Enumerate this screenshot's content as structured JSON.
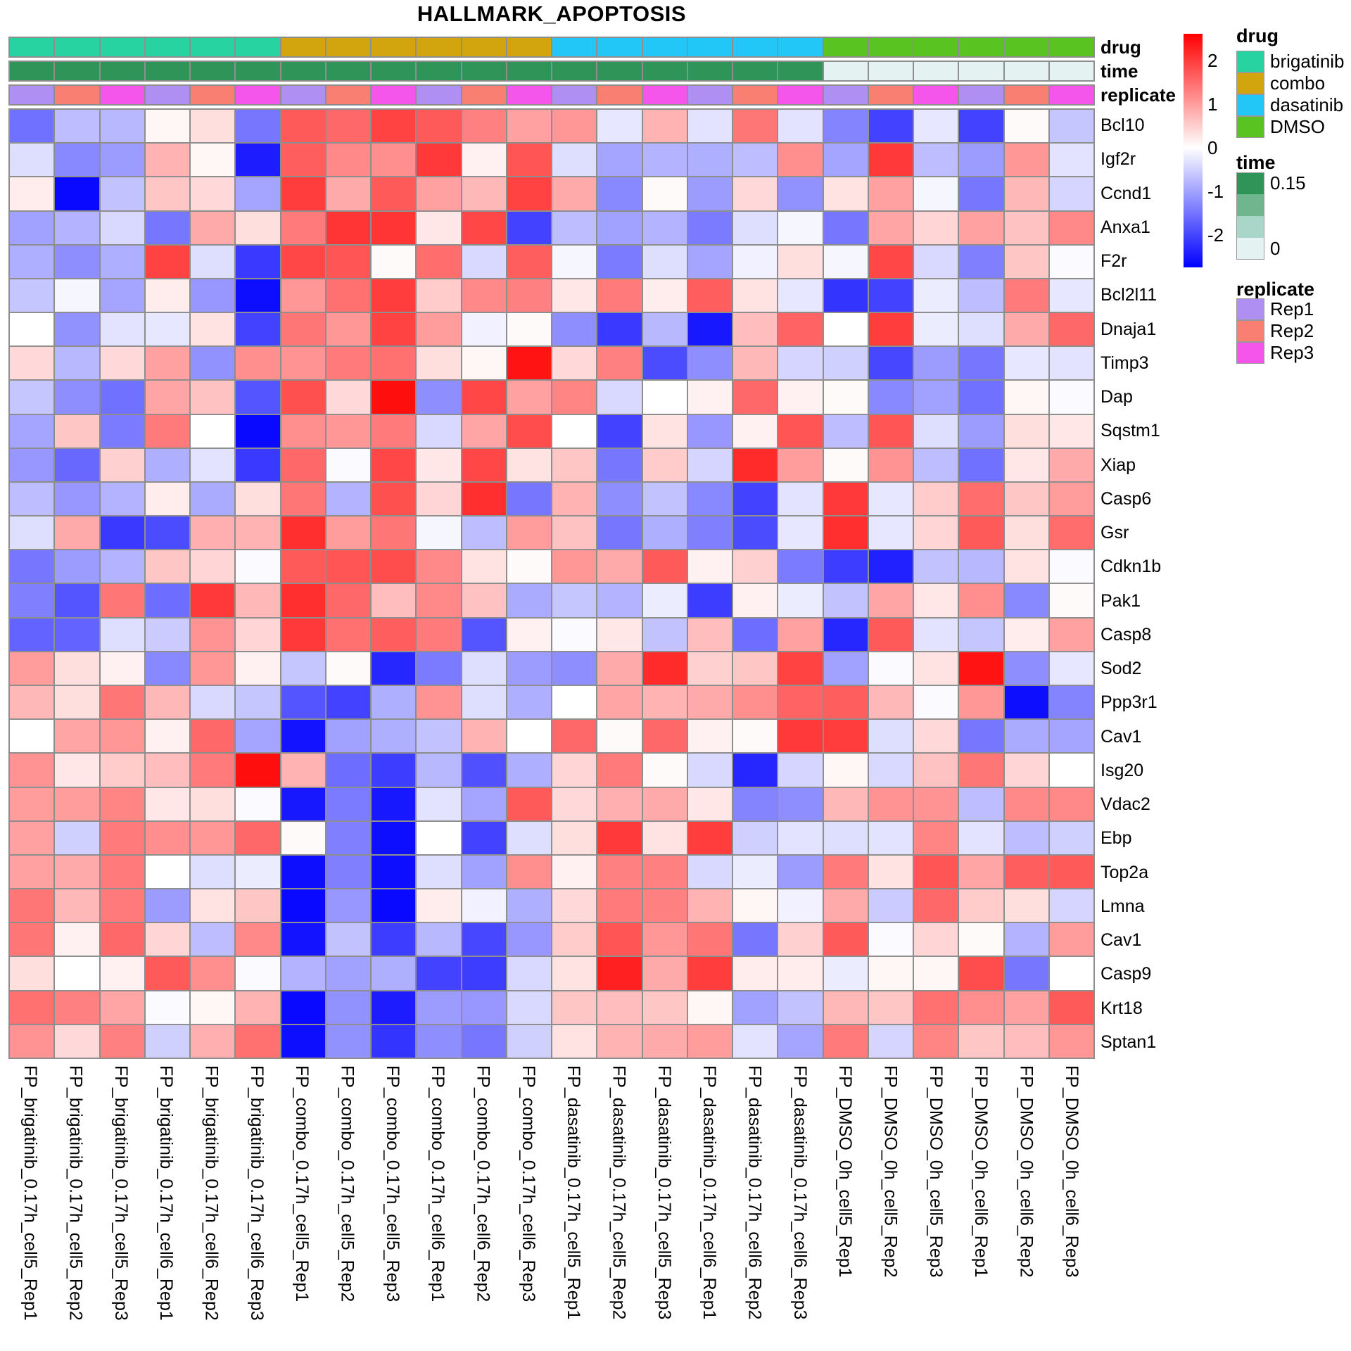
{
  "title": "HALLMARK_APOPTOSIS",
  "annotation_labels": {
    "drug": "drug",
    "time": "time",
    "replicate": "replicate"
  },
  "legends": {
    "drug": {
      "title": "drug",
      "items": [
        {
          "label": "brigatinib",
          "color": "#27D3A1"
        },
        {
          "label": "combo",
          "color": "#D2A40E"
        },
        {
          "label": "dasatinib",
          "color": "#22C7F8"
        },
        {
          "label": "DMSO",
          "color": "#58C321"
        }
      ]
    },
    "time": {
      "title": "time",
      "stops": [
        "#2F9457",
        "#6FB58E",
        "#A9D6C9",
        "#E4F3F1"
      ],
      "top_label": "0.15",
      "bottom_label": "0"
    },
    "replicate": {
      "title": "replicate",
      "items": [
        {
          "label": "Rep1",
          "color": "#AF8FF2"
        },
        {
          "label": "Rep2",
          "color": "#F87F72"
        },
        {
          "label": "Rep3",
          "color": "#F655EC"
        }
      ]
    }
  },
  "chart_data": {
    "type": "heatmap",
    "title": "HALLMARK_APOPTOSIS",
    "colormap": {
      "low": "#0000FF",
      "mid": "#FFFFFF",
      "high": "#FF0000",
      "vmin": -2.7,
      "vmax": 2.7
    },
    "colorbar_ticks": [
      2,
      1,
      0,
      -1,
      -2
    ],
    "grid_line_color": "#8e8e8e",
    "columns": [
      "FP_brigatinib_0.17h_cell5_Rep1",
      "FP_brigatinib_0.17h_cell5_Rep2",
      "FP_brigatinib_0.17h_cell5_Rep3",
      "FP_brigatinib_0.17h_cell6_Rep1",
      "FP_brigatinib_0.17h_cell6_Rep2",
      "FP_brigatinib_0.17h_cell6_Rep3",
      "FP_combo_0.17h_cell5_Rep1",
      "FP_combo_0.17h_cell5_Rep2",
      "FP_combo_0.17h_cell5_Rep3",
      "FP_combo_0.17h_cell6_Rep1",
      "FP_combo_0.17h_cell6_Rep2",
      "FP_combo_0.17h_cell6_Rep3",
      "FP_dasatinib_0.17h_cell5_Rep1",
      "FP_dasatinib_0.17h_cell5_Rep2",
      "FP_dasatinib_0.17h_cell5_Rep3",
      "FP_dasatinib_0.17h_cell6_Rep1",
      "FP_dasatinib_0.17h_cell6_Rep2",
      "FP_dasatinib_0.17h_cell6_Rep3",
      "FP_DMSO_0h_cell5_Rep1",
      "FP_DMSO_0h_cell5_Rep2",
      "FP_DMSO_0h_cell5_Rep3",
      "FP_DMSO_0h_cell6_Rep1",
      "FP_DMSO_0h_cell6_Rep2",
      "FP_DMSO_0h_cell6_Rep3"
    ],
    "rows": [
      "Bcl10",
      "Igf2r",
      "Ccnd1",
      "Anxa1",
      "F2r",
      "Bcl2l11",
      "Dnaja1",
      "Timp3",
      "Dap",
      "Sqstm1",
      "Xiap",
      "Casp6",
      "Gsr",
      "Cdkn1b",
      "Pak1",
      "Casp8",
      "Sod2",
      "Ppp3r1",
      "Cav1",
      "Isg20",
      "Vdac2",
      "Ebp",
      "Top2a",
      "Lmna",
      "Cav1",
      "Casp9",
      "Krt18",
      "Sptan1"
    ],
    "values": [
      [
        -1.5,
        -0.7,
        -0.75,
        0.1,
        0.35,
        -1.45,
        1.75,
        1.6,
        2.0,
        1.75,
        1.35,
        1.0,
        1.1,
        -0.25,
        0.8,
        -0.3,
        1.45,
        -0.3,
        -1.3,
        -2.0,
        -0.25,
        -2.0,
        0.05,
        -0.6
      ],
      [
        -0.35,
        -1.25,
        -1.05,
        0.8,
        0.1,
        -2.4,
        1.7,
        1.25,
        1.2,
        2.1,
        0.15,
        1.8,
        -0.35,
        -0.95,
        -0.8,
        -0.85,
        -0.7,
        1.2,
        -0.95,
        2.1,
        -0.7,
        -1.05,
        1.1,
        -0.3
      ],
      [
        0.2,
        -2.6,
        -0.65,
        0.6,
        0.4,
        -0.95,
        2.05,
        0.9,
        1.75,
        1.0,
        0.75,
        2.0,
        0.9,
        -1.25,
        0.05,
        -1.05,
        0.4,
        -1.15,
        0.3,
        1.0,
        -0.1,
        -1.45,
        0.75,
        -0.45
      ],
      [
        -1.0,
        -0.8,
        -0.4,
        -1.45,
        0.9,
        0.35,
        1.4,
        2.15,
        2.15,
        0.25,
        1.95,
        -2.0,
        -0.7,
        -1.0,
        -0.8,
        -1.4,
        -0.35,
        -0.1,
        -1.45,
        0.95,
        0.45,
        1.0,
        0.65,
        1.25
      ],
      [
        -0.85,
        -1.2,
        -0.85,
        2.0,
        -0.35,
        -2.1,
        1.95,
        1.8,
        0.05,
        1.55,
        -0.4,
        1.7,
        -0.1,
        -1.4,
        -0.35,
        -0.95,
        -0.15,
        0.35,
        -0.1,
        1.95,
        -0.4,
        -1.35,
        0.6,
        -0.05
      ],
      [
        -0.6,
        -0.1,
        -0.95,
        0.2,
        -1.1,
        -2.55,
        1.1,
        1.5,
        2.05,
        0.55,
        1.25,
        1.35,
        0.25,
        1.4,
        0.2,
        1.7,
        0.3,
        -0.25,
        -2.15,
        -2.0,
        -0.2,
        -0.7,
        1.4,
        -0.25
      ],
      [
        0.0,
        -1.15,
        -0.3,
        -0.25,
        0.3,
        -2.0,
        1.45,
        1.1,
        2.0,
        1.05,
        -0.15,
        0.05,
        -1.2,
        -2.1,
        -0.75,
        -2.45,
        0.7,
        1.65,
        0.0,
        2.05,
        -0.2,
        -0.35,
        0.9,
        1.6
      ],
      [
        0.4,
        -0.75,
        0.4,
        1.0,
        -1.15,
        1.2,
        1.15,
        1.4,
        1.5,
        0.35,
        0.1,
        2.5,
        0.4,
        1.35,
        -1.9,
        -1.2,
        0.75,
        -0.45,
        -0.5,
        -1.95,
        -1.05,
        -1.45,
        -0.25,
        -0.3
      ],
      [
        -0.6,
        -1.2,
        -1.5,
        0.95,
        0.65,
        -1.8,
        1.85,
        0.4,
        2.55,
        -1.2,
        1.95,
        1.0,
        1.3,
        -0.4,
        0.0,
        0.15,
        1.6,
        0.15,
        0.05,
        -1.25,
        -1.0,
        -1.5,
        0.1,
        -0.05
      ],
      [
        -0.95,
        0.6,
        -1.4,
        1.4,
        0.0,
        -2.6,
        1.2,
        1.1,
        1.4,
        -0.4,
        0.95,
        1.9,
        0.0,
        -2.0,
        0.3,
        -1.1,
        0.15,
        1.8,
        -0.7,
        1.8,
        -0.35,
        -1.05,
        0.35,
        0.25
      ],
      [
        -1.1,
        -1.6,
        0.5,
        -0.85,
        -0.3,
        -2.1,
        1.6,
        -0.05,
        1.95,
        0.25,
        1.95,
        0.3,
        0.6,
        -1.45,
        0.55,
        -0.45,
        2.25,
        1.05,
        0.05,
        1.15,
        -0.7,
        -1.5,
        0.25,
        0.9
      ],
      [
        -0.7,
        -1.1,
        -0.8,
        0.2,
        -0.9,
        0.35,
        1.45,
        -0.8,
        1.85,
        0.45,
        2.2,
        -1.45,
        0.8,
        -1.2,
        -0.65,
        -1.25,
        -2.0,
        -0.3,
        2.1,
        -0.25,
        0.55,
        1.55,
        0.6,
        1.05
      ],
      [
        -0.35,
        0.9,
        -2.1,
        -1.9,
        0.85,
        0.8,
        2.2,
        1.05,
        1.45,
        -0.1,
        -0.7,
        1.05,
        0.65,
        -1.45,
        -0.85,
        -1.35,
        -1.9,
        -0.25,
        2.2,
        -0.25,
        0.45,
        1.75,
        0.35,
        1.55
      ],
      [
        -1.45,
        -1.05,
        -0.8,
        0.6,
        0.45,
        -0.05,
        1.75,
        1.8,
        1.9,
        1.25,
        0.3,
        0.05,
        1.1,
        0.9,
        1.75,
        0.15,
        0.5,
        -1.4,
        -2.05,
        -2.35,
        -0.65,
        -0.75,
        0.3,
        -0.05
      ],
      [
        -1.35,
        -1.8,
        1.45,
        -1.55,
        2.1,
        0.75,
        2.2,
        1.6,
        0.7,
        1.25,
        0.65,
        -0.9,
        -0.6,
        -0.8,
        -0.2,
        -2.05,
        0.15,
        -0.2,
        -0.65,
        0.95,
        0.25,
        1.2,
        -1.25,
        0.05
      ],
      [
        -1.65,
        -1.65,
        -0.35,
        -0.55,
        1.15,
        0.45,
        2.1,
        1.5,
        1.7,
        1.4,
        -1.8,
        0.15,
        -0.05,
        0.25,
        -0.65,
        0.7,
        -1.55,
        1.0,
        -2.3,
        1.75,
        -0.3,
        -0.6,
        0.2,
        1.0
      ],
      [
        1.05,
        0.35,
        0.15,
        -1.25,
        1.1,
        0.15,
        -0.6,
        0.05,
        -2.3,
        -1.4,
        -0.35,
        -1.05,
        -1.2,
        0.9,
        2.25,
        0.5,
        0.6,
        2.0,
        -1.0,
        -0.05,
        0.3,
        2.5,
        -1.2,
        -0.25
      ],
      [
        0.75,
        0.35,
        1.45,
        0.75,
        -0.4,
        -0.6,
        -1.8,
        -2.0,
        -0.85,
        1.15,
        -0.35,
        -0.85,
        0.0,
        0.95,
        0.8,
        0.9,
        1.2,
        1.65,
        1.7,
        0.75,
        -0.05,
        1.1,
        -2.55,
        -1.3
      ],
      [
        0.0,
        0.95,
        1.1,
        0.15,
        1.6,
        -0.95,
        -2.5,
        -1.0,
        -0.85,
        -0.65,
        0.8,
        0.0,
        1.6,
        0.05,
        1.6,
        0.15,
        0.05,
        2.1,
        2.05,
        -0.35,
        0.4,
        -1.45,
        -0.9,
        -0.95
      ],
      [
        1.15,
        0.25,
        0.55,
        0.7,
        1.4,
        2.55,
        0.8,
        -1.55,
        -2.05,
        -0.75,
        -1.85,
        -0.85,
        0.45,
        1.4,
        0.05,
        -0.4,
        -2.3,
        -0.45,
        0.1,
        -0.4,
        0.65,
        1.45,
        0.45,
        0.0
      ],
      [
        1.05,
        1.05,
        1.3,
        0.25,
        0.35,
        -0.05,
        -2.45,
        -1.4,
        -2.45,
        -0.3,
        -0.95,
        1.75,
        0.4,
        0.85,
        0.9,
        0.25,
        -1.3,
        -1.2,
        0.75,
        1.15,
        1.15,
        -0.7,
        1.25,
        1.25
      ],
      [
        1.0,
        -0.5,
        1.4,
        1.2,
        1.1,
        1.6,
        0.05,
        -1.35,
        -2.55,
        0.0,
        -2.0,
        -0.35,
        0.35,
        2.1,
        0.3,
        2.05,
        -0.5,
        -0.3,
        -0.35,
        -0.3,
        1.3,
        -0.3,
        -0.7,
        -0.5
      ],
      [
        1.0,
        0.9,
        1.4,
        0.0,
        -0.35,
        -0.2,
        -2.55,
        -1.35,
        -2.55,
        -0.35,
        -1.0,
        1.2,
        0.15,
        1.35,
        1.35,
        -0.4,
        -0.2,
        -1.05,
        1.4,
        0.3,
        1.8,
        0.95,
        1.7,
        1.75
      ],
      [
        1.45,
        0.75,
        1.4,
        -1.05,
        0.3,
        0.6,
        -2.6,
        -1.1,
        -2.6,
        0.2,
        -0.15,
        -0.85,
        0.4,
        1.4,
        1.35,
        0.8,
        0.1,
        -0.15,
        0.9,
        -0.55,
        1.6,
        0.55,
        0.35,
        -0.45
      ],
      [
        1.45,
        0.15,
        1.6,
        0.45,
        -0.7,
        1.25,
        -2.5,
        -0.65,
        -2.05,
        -0.75,
        -1.95,
        -1.1,
        0.55,
        1.8,
        1.1,
        1.45,
        -1.45,
        0.5,
        1.75,
        -0.05,
        0.45,
        0.05,
        -0.8,
        1.05
      ],
      [
        0.35,
        0.0,
        0.15,
        1.75,
        1.2,
        -0.05,
        -0.8,
        -1.0,
        -0.85,
        -2.0,
        -2.05,
        -0.4,
        0.3,
        2.35,
        0.9,
        2.05,
        0.2,
        0.2,
        -0.2,
        0.1,
        0.1,
        1.9,
        -1.45,
        0.0
      ],
      [
        1.5,
        1.35,
        0.95,
        -0.05,
        0.1,
        0.8,
        -2.6,
        -1.15,
        -2.4,
        -1.05,
        -1.1,
        -0.4,
        0.6,
        0.7,
        0.6,
        0.1,
        -1.0,
        -0.65,
        0.75,
        0.6,
        1.5,
        1.2,
        1.0,
        1.75
      ],
      [
        1.15,
        0.4,
        1.35,
        -0.5,
        0.85,
        1.5,
        -2.55,
        -1.15,
        -2.15,
        -1.2,
        -1.45,
        -0.5,
        0.3,
        0.8,
        0.9,
        1.05,
        -0.3,
        -0.95,
        1.4,
        -0.45,
        1.3,
        0.6,
        0.7,
        1.1
      ]
    ],
    "column_annotations": {
      "drug": [
        "brigatinib",
        "brigatinib",
        "brigatinib",
        "brigatinib",
        "brigatinib",
        "brigatinib",
        "combo",
        "combo",
        "combo",
        "combo",
        "combo",
        "combo",
        "dasatinib",
        "dasatinib",
        "dasatinib",
        "dasatinib",
        "dasatinib",
        "dasatinib",
        "DMSO",
        "DMSO",
        "DMSO",
        "DMSO",
        "DMSO",
        "DMSO"
      ],
      "time": [
        0.17,
        0.17,
        0.17,
        0.17,
        0.17,
        0.17,
        0.17,
        0.17,
        0.17,
        0.17,
        0.17,
        0.17,
        0.17,
        0.17,
        0.17,
        0.17,
        0.17,
        0.17,
        0,
        0,
        0,
        0,
        0,
        0
      ],
      "replicate": [
        "Rep1",
        "Rep2",
        "Rep3",
        "Rep1",
        "Rep2",
        "Rep3",
        "Rep1",
        "Rep2",
        "Rep3",
        "Rep1",
        "Rep2",
        "Rep3",
        "Rep1",
        "Rep2",
        "Rep3",
        "Rep1",
        "Rep2",
        "Rep3",
        "Rep1",
        "Rep2",
        "Rep3",
        "Rep1",
        "Rep2",
        "Rep3"
      ]
    },
    "annotation_colors": {
      "drug": {
        "brigatinib": "#27D3A1",
        "combo": "#D2A40E",
        "dasatinib": "#22C7F8",
        "DMSO": "#58C321"
      },
      "time": {
        "0.17": "#2F9457",
        "0": "#E4F3F1"
      },
      "replicate": {
        "Rep1": "#AF8FF2",
        "Rep2": "#F87F72",
        "Rep3": "#F655EC"
      }
    }
  }
}
